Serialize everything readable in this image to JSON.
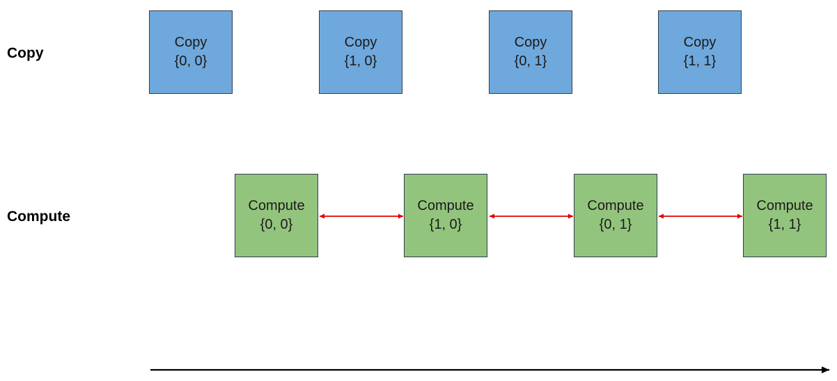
{
  "rows": {
    "copy_label": "Copy",
    "compute_label": "Compute"
  },
  "copy_boxes": [
    {
      "title": "Copy",
      "index": "{0, 0}"
    },
    {
      "title": "Copy",
      "index": "{1, 0}"
    },
    {
      "title": "Copy",
      "index": "{0, 1}"
    },
    {
      "title": "Copy",
      "index": "{1, 1}"
    }
  ],
  "compute_boxes": [
    {
      "title": "Compute",
      "index": "{0, 0}"
    },
    {
      "title": "Compute",
      "index": "{1, 0}"
    },
    {
      "title": "Compute",
      "index": "{0, 1}"
    },
    {
      "title": "Compute",
      "index": "{1, 1}"
    }
  ],
  "colors": {
    "copy_fill": "#6fa8dc",
    "compute_fill": "#93c47d",
    "dependency_arrow": "#e00000",
    "time_axis": "#000000"
  }
}
